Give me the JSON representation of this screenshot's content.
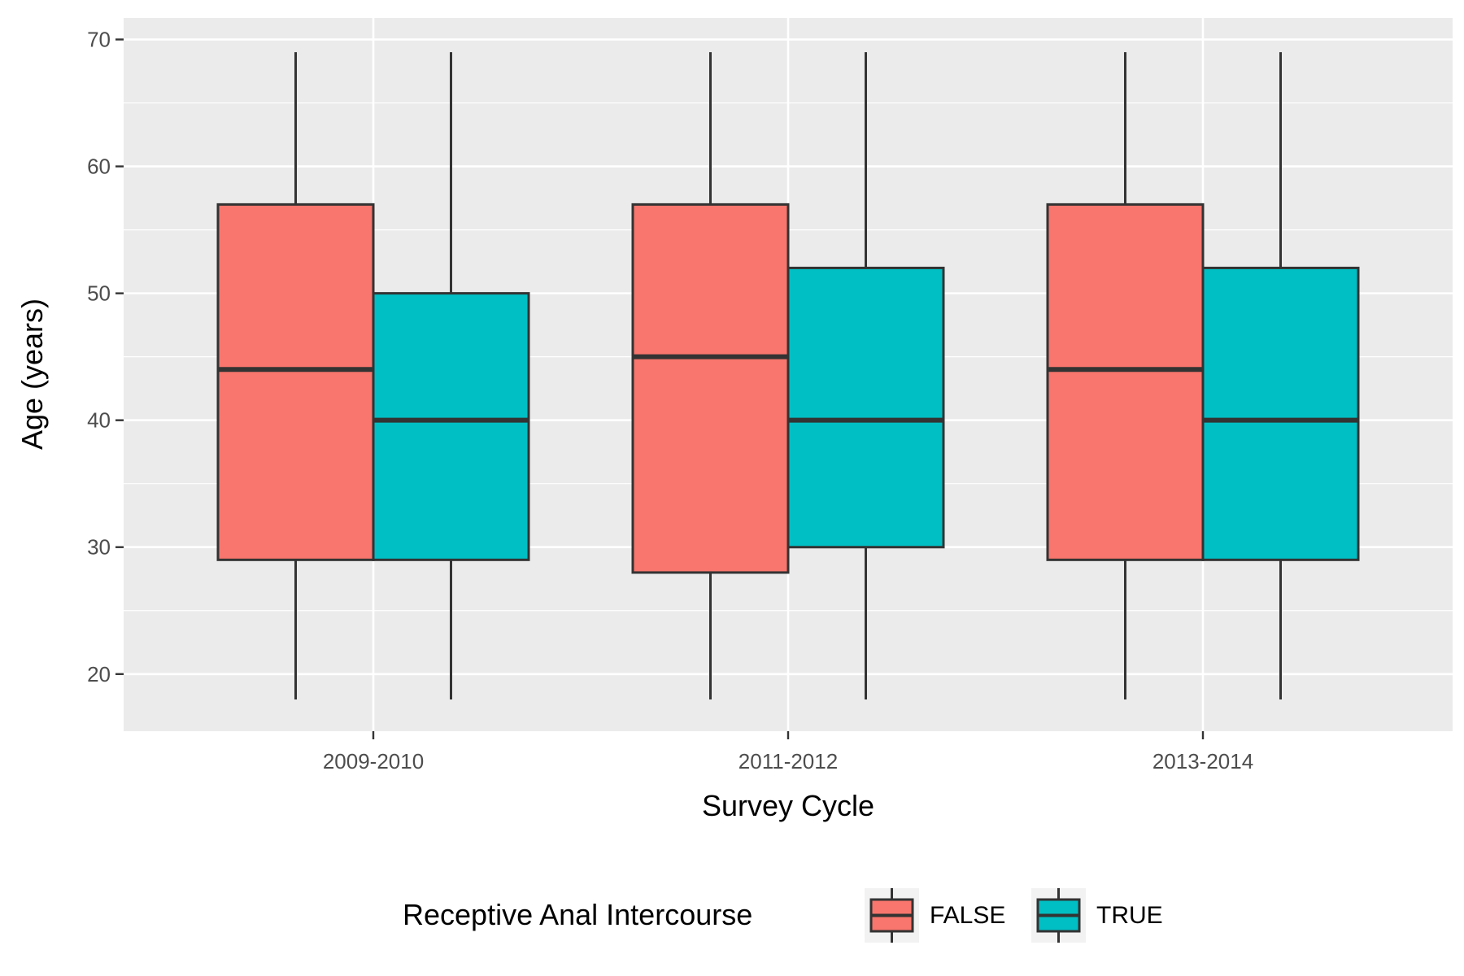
{
  "chart_data": {
    "type": "boxplot",
    "xlabel": "Survey Cycle",
    "ylabel": "Age (years)",
    "categories": [
      "2009-2010",
      "2011-2012",
      "2013-2014"
    ],
    "ylim": [
      15.5,
      71.7
    ],
    "yticks": [
      20,
      30,
      40,
      50,
      60,
      70
    ],
    "ytick_labels": [
      "20",
      "30",
      "40",
      "50",
      "60",
      "70"
    ],
    "grid": true,
    "legend": {
      "title": "Receptive Anal Intercourse",
      "position": "bottom"
    },
    "series": [
      {
        "name": "FALSE",
        "color": "#F8766D",
        "boxes": [
          {
            "min": 18,
            "q1": 29,
            "median": 44,
            "q3": 57,
            "max": 69
          },
          {
            "min": 18,
            "q1": 28,
            "median": 45,
            "q3": 57,
            "max": 69
          },
          {
            "min": 18,
            "q1": 29,
            "median": 44,
            "q3": 57,
            "max": 69
          }
        ]
      },
      {
        "name": "TRUE",
        "color": "#00BFC4",
        "boxes": [
          {
            "min": 18,
            "q1": 29,
            "median": 40,
            "q3": 50,
            "max": 69
          },
          {
            "min": 18,
            "q1": 30,
            "median": 40,
            "q3": 52,
            "max": 69
          },
          {
            "min": 18,
            "q1": 29,
            "median": 40,
            "q3": 52,
            "max": 69
          }
        ]
      }
    ],
    "colors": {
      "panel": "#EBEBEB",
      "grid": "#FFFFFF",
      "outline": "#333333",
      "tick": "#4d4d4d"
    }
  }
}
